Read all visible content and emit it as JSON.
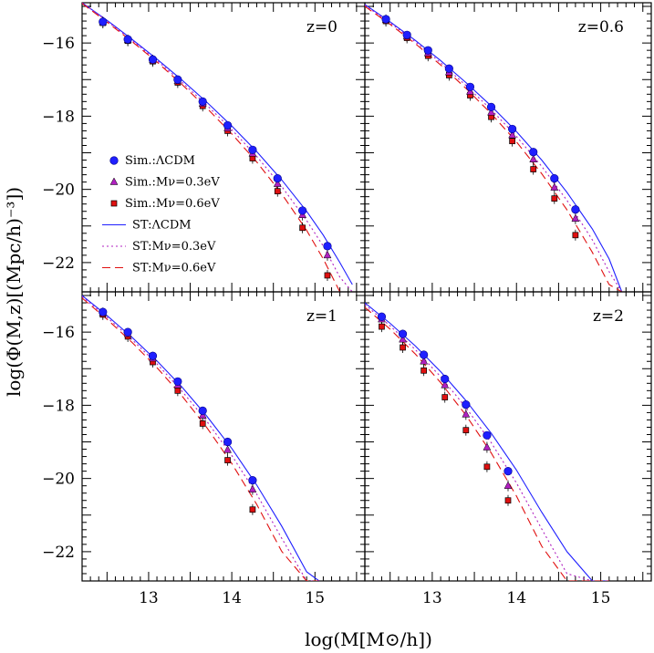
{
  "chart_data": {
    "type": "scatter",
    "xlabel": "log(M[M⊙/h])",
    "ylabel": "log(Φ(M,z)[(Mpc/h)⁻³])",
    "xlim": [
      12.2,
      15.6
    ],
    "ylim": [
      -22.8,
      -14.9
    ],
    "xticks": [
      13,
      14,
      15
    ],
    "yticks": [
      -16,
      -18,
      -20,
      -22
    ],
    "colors": {
      "lcdm": "#1f1fff",
      "nu03": "#b020c0",
      "nu06": "#e01010"
    },
    "legend": {
      "entries": [
        {
          "label": "Sim.:ΛCDM",
          "kind": "marker",
          "series": "lcdm"
        },
        {
          "label": "Sim.:Mν=0.3eV",
          "kind": "marker",
          "series": "nu03"
        },
        {
          "label": "Sim.:Mν=0.6eV",
          "kind": "marker",
          "series": "nu06"
        },
        {
          "label": "ST:ΛCDM",
          "kind": "line",
          "series": "lcdm"
        },
        {
          "label": "ST:Mν=0.3eV",
          "kind": "line",
          "series": "nu03"
        },
        {
          "label": "ST:Mν=0.6eV",
          "kind": "line",
          "series": "nu06"
        }
      ]
    },
    "panels": [
      {
        "label": "z=0",
        "sim": {
          "x": [
            12.45,
            12.75,
            13.05,
            13.35,
            13.65,
            13.95,
            14.25,
            14.55,
            14.85,
            15.15
          ],
          "lcdm": [
            -15.42,
            -15.9,
            -16.45,
            -17.0,
            -17.6,
            -18.25,
            -18.92,
            -19.7,
            -20.58,
            -21.55
          ],
          "nu03": [
            -15.43,
            -15.92,
            -16.47,
            -17.04,
            -17.66,
            -18.33,
            -19.02,
            -19.85,
            -20.7,
            -21.8
          ],
          "nu06": [
            -15.45,
            -15.94,
            -16.5,
            -17.08,
            -17.72,
            -18.4,
            -19.15,
            -20.05,
            -21.05,
            -22.35
          ]
        },
        "st": {
          "x": [
            12.2,
            12.5,
            12.8,
            13.1,
            13.4,
            13.7,
            14.0,
            14.3,
            14.6,
            14.9,
            15.1,
            15.3,
            15.45
          ],
          "lcdm": [
            -14.9,
            -15.38,
            -15.9,
            -16.44,
            -17.01,
            -17.62,
            -18.27,
            -18.97,
            -19.74,
            -20.6,
            -21.25,
            -22.0,
            -22.6
          ],
          "nu03": [
            -14.9,
            -15.4,
            -15.93,
            -16.48,
            -17.07,
            -17.7,
            -18.37,
            -19.1,
            -19.92,
            -20.85,
            -21.55,
            -22.4,
            -22.8
          ],
          "nu06": [
            -14.92,
            -15.43,
            -15.96,
            -16.52,
            -17.13,
            -17.78,
            -18.48,
            -19.25,
            -20.12,
            -21.12,
            -21.9,
            -22.8,
            -22.8
          ]
        }
      },
      {
        "label": "z=0.6",
        "sim": {
          "x": [
            12.45,
            12.7,
            12.95,
            13.2,
            13.45,
            13.7,
            13.95,
            14.2,
            14.45,
            14.7
          ],
          "lcdm": [
            -15.35,
            -15.78,
            -16.2,
            -16.7,
            -17.2,
            -17.75,
            -18.35,
            -18.98,
            -19.7,
            -20.55
          ],
          "nu03": [
            -15.37,
            -15.82,
            -16.28,
            -16.8,
            -17.33,
            -17.9,
            -18.52,
            -19.18,
            -19.95,
            -20.8
          ],
          "nu06": [
            -15.4,
            -15.86,
            -16.35,
            -16.88,
            -17.43,
            -18.02,
            -18.68,
            -19.45,
            -20.25,
            -21.25
          ]
        },
        "st": {
          "x": [
            12.2,
            12.5,
            12.8,
            13.1,
            13.4,
            13.7,
            14.0,
            14.3,
            14.6,
            14.9,
            15.1,
            15.25
          ],
          "lcdm": [
            -14.95,
            -15.42,
            -15.93,
            -16.48,
            -17.08,
            -17.72,
            -18.42,
            -19.2,
            -20.08,
            -21.08,
            -21.9,
            -22.8
          ],
          "nu03": [
            -14.97,
            -15.45,
            -15.97,
            -16.54,
            -17.16,
            -17.82,
            -18.55,
            -19.37,
            -20.3,
            -21.38,
            -22.25,
            -22.8
          ],
          "nu06": [
            -15.0,
            -15.49,
            -16.02,
            -16.6,
            -17.24,
            -17.93,
            -18.7,
            -19.57,
            -20.56,
            -21.72,
            -22.6,
            -22.8
          ]
        }
      },
      {
        "label": "z=1",
        "sim": {
          "x": [
            12.45,
            12.75,
            13.05,
            13.35,
            13.65,
            13.95,
            14.25
          ],
          "lcdm": [
            -15.45,
            -16.0,
            -16.65,
            -17.35,
            -18.15,
            -19.0,
            -20.05
          ],
          "nu03": [
            -15.48,
            -16.05,
            -16.72,
            -17.45,
            -18.28,
            -19.22,
            -20.3
          ],
          "nu06": [
            -15.52,
            -16.12,
            -16.82,
            -17.6,
            -18.5,
            -19.5,
            -20.85
          ]
        },
        "st": {
          "x": [
            12.2,
            12.5,
            12.8,
            13.1,
            13.4,
            13.7,
            14.0,
            14.3,
            14.6,
            14.9,
            15.05
          ],
          "lcdm": [
            -15.0,
            -15.55,
            -16.14,
            -16.79,
            -17.5,
            -18.3,
            -19.18,
            -20.18,
            -21.3,
            -22.55,
            -22.8
          ],
          "nu03": [
            -15.03,
            -15.6,
            -16.2,
            -16.87,
            -17.61,
            -18.44,
            -19.37,
            -20.43,
            -21.63,
            -22.8,
            -22.8
          ],
          "nu06": [
            -15.07,
            -15.65,
            -16.28,
            -16.97,
            -17.74,
            -18.61,
            -19.59,
            -20.71,
            -21.99,
            -22.8,
            -22.8
          ]
        }
      },
      {
        "label": "z=2",
        "sim": {
          "x": [
            12.4,
            12.65,
            12.9,
            13.15,
            13.4,
            13.65,
            13.9
          ],
          "lcdm": [
            -15.58,
            -16.05,
            -16.62,
            -17.28,
            -17.98,
            -18.82,
            -19.8
          ],
          "nu03": [
            -15.65,
            -16.2,
            -16.8,
            -17.45,
            -18.25,
            -19.15,
            -20.2
          ],
          "nu06": [
            -15.85,
            -16.42,
            -17.05,
            -17.78,
            -18.68,
            -19.68,
            -20.6
          ]
        },
        "st": {
          "x": [
            12.2,
            12.5,
            12.8,
            13.1,
            13.4,
            13.7,
            14.0,
            14.3,
            14.6,
            14.9,
            15.1
          ],
          "lcdm": [
            -15.2,
            -15.76,
            -16.38,
            -17.08,
            -17.87,
            -18.76,
            -19.77,
            -20.92,
            -22.0,
            -22.8,
            -22.8
          ],
          "nu03": [
            -15.25,
            -15.83,
            -16.48,
            -17.22,
            -18.06,
            -19.02,
            -20.12,
            -21.38,
            -22.6,
            -22.8,
            -22.8
          ],
          "nu06": [
            -15.32,
            -15.92,
            -16.6,
            -17.38,
            -18.27,
            -19.3,
            -20.48,
            -21.85,
            -22.8,
            -22.8,
            -22.8
          ]
        }
      }
    ]
  }
}
